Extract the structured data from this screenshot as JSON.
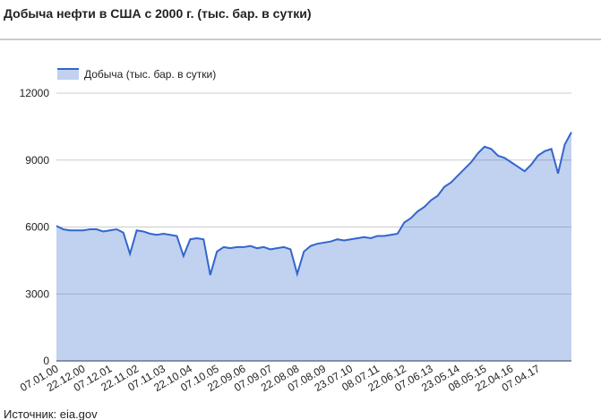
{
  "chart_data": {
    "type": "area",
    "title": "Добыча нефти в США с 2000 г. (тыс. бар. в сутки)",
    "source": "Источник: eia.gov",
    "categories": [
      "07.01.00",
      null,
      null,
      null,
      "22.12.00",
      null,
      null,
      null,
      "07.12.01",
      null,
      null,
      null,
      "22.11.02",
      null,
      null,
      null,
      "07.11.03",
      null,
      null,
      null,
      "22.10.04",
      null,
      null,
      null,
      "07.10.05",
      null,
      null,
      null,
      "22.09.06",
      null,
      null,
      null,
      "07.09.07",
      null,
      null,
      null,
      "22.08.08",
      null,
      null,
      null,
      "07.08.09",
      null,
      null,
      null,
      "23.07.10",
      null,
      null,
      null,
      "08.07.11",
      null,
      null,
      null,
      "22.06.12",
      null,
      null,
      null,
      "07.06.13",
      null,
      null,
      null,
      "23.05.14",
      null,
      null,
      null,
      "08.05.15",
      null,
      null,
      null,
      "22.04.16",
      null,
      null,
      null,
      "07.04.17",
      null,
      null,
      null,
      null,
      null
    ],
    "series": [
      {
        "name": "Добыча (тыс. бар. в сутки)",
        "color": "#3366cc",
        "values": [
          6050,
          5900,
          5850,
          5850,
          5850,
          5900,
          5900,
          5800,
          5850,
          5900,
          5750,
          4800,
          5850,
          5800,
          5700,
          5650,
          5700,
          5650,
          5600,
          4700,
          5450,
          5500,
          5450,
          3850,
          4900,
          5100,
          5050,
          5100,
          5100,
          5150,
          5050,
          5100,
          5000,
          5050,
          5100,
          5000,
          3900,
          4900,
          5150,
          5250,
          5300,
          5350,
          5450,
          5400,
          5450,
          5500,
          5550,
          5500,
          5600,
          5600,
          5650,
          5700,
          6200,
          6400,
          6700,
          6900,
          7200,
          7400,
          7800,
          8000,
          8300,
          8600,
          8900,
          9300,
          9600,
          9500,
          9200,
          9100,
          8900,
          8700,
          8500,
          8800,
          9200,
          9400,
          9500,
          8400,
          9700,
          10250
        ]
      }
    ],
    "ylim": [
      0,
      12000
    ],
    "yticks": [
      0,
      3000,
      6000,
      9000,
      12000
    ],
    "grid": true
  }
}
